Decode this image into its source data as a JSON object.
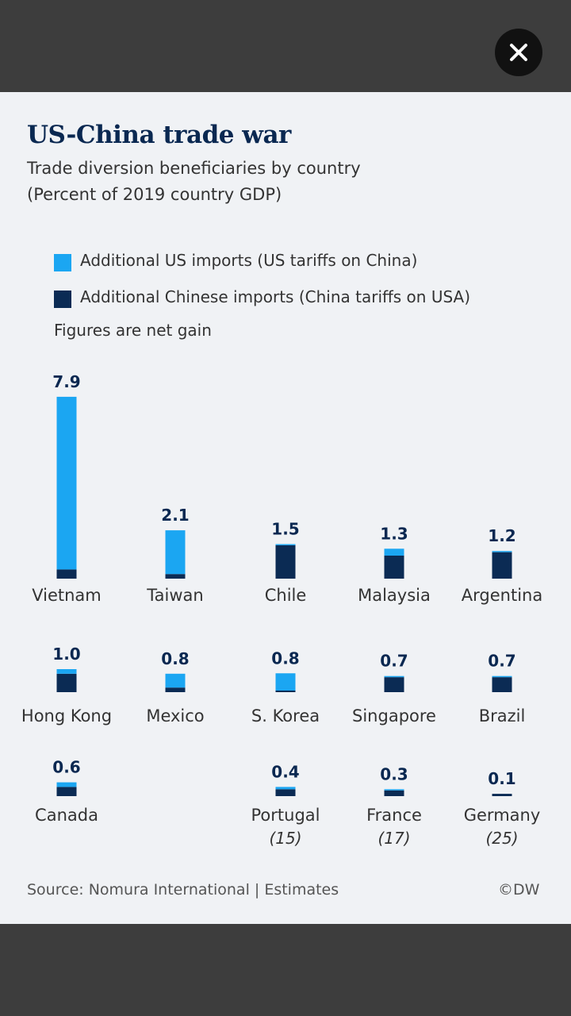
{
  "overlay": {
    "close_icon": "close-icon"
  },
  "header": {
    "title": "US-China trade war",
    "subtitle_line1": "Trade diversion beneficiaries by country",
    "subtitle_line2": "(Percent of 2019 country GDP)"
  },
  "legend": {
    "items": [
      {
        "label": "Additional US imports (US tariffs on China)",
        "color": "#1ba6f2"
      },
      {
        "label": "Additional Chinese imports (China tariffs on USA)",
        "color": "#0b2b54"
      }
    ],
    "note": "Figures are net gain"
  },
  "colors": {
    "us": "#1ba6f2",
    "china": "#0b2b54",
    "text_dark": "#0a2851"
  },
  "chart_data": {
    "type": "bar",
    "stacked": true,
    "series_names": [
      "Additional US imports (US tariffs on China)",
      "Additional Chinese imports (China tariffs on USA)"
    ],
    "categories": [
      {
        "name": "Vietnam",
        "total": "7.9",
        "us": 7.5,
        "china": 0.4
      },
      {
        "name": "Taiwan",
        "total": "2.1",
        "us": 1.9,
        "china": 0.2
      },
      {
        "name": "Chile",
        "total": "1.5",
        "us": 0.05,
        "china": 1.45
      },
      {
        "name": "Malaysia",
        "total": "1.3",
        "us": 0.3,
        "china": 1.0
      },
      {
        "name": "Argentina",
        "total": "1.2",
        "us": 0.05,
        "china": 1.15
      },
      {
        "name": "Hong Kong",
        "total": "1.0",
        "us": 0.2,
        "china": 0.8
      },
      {
        "name": "Mexico",
        "total": "0.8",
        "us": 0.6,
        "china": 0.2
      },
      {
        "name": "S. Korea",
        "total": "0.8",
        "us": 0.75,
        "china": 0.05
      },
      {
        "name": "Singapore",
        "total": "0.7",
        "us": 0.05,
        "china": 0.65
      },
      {
        "name": "Brazil",
        "total": "0.7",
        "us": 0.05,
        "china": 0.65
      },
      {
        "name": "Canada",
        "total": "0.6",
        "us": 0.2,
        "china": 0.4
      },
      {
        "name": "Portugal",
        "rank": "(15)",
        "total": "0.4",
        "us": 0.1,
        "china": 0.3
      },
      {
        "name": "France",
        "rank": "(17)",
        "total": "0.3",
        "us": 0.05,
        "china": 0.25
      },
      {
        "name": "Germany",
        "rank": "(25)",
        "total": "0.1",
        "us": 0.0,
        "china": 0.1
      }
    ]
  },
  "footer": {
    "source": "Source: Nomura International | Estimates",
    "credit": "©DW"
  }
}
